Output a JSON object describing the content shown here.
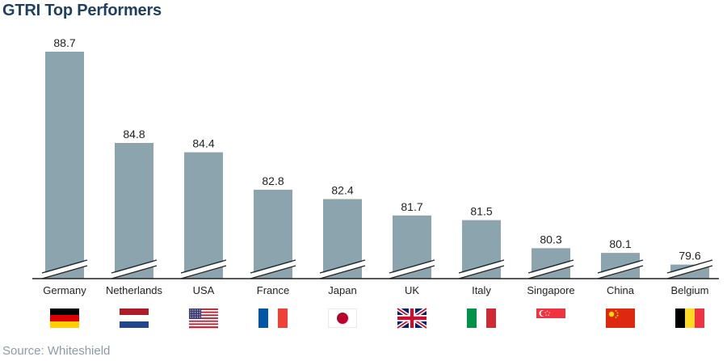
{
  "title": "GTRI Top Performers",
  "source": "Source: Whiteshield",
  "colors": {
    "bar": "#8ba4ae",
    "title": "#1f3f5f",
    "axis": "#222222",
    "source": "#8f9aa3"
  },
  "chart_data": {
    "type": "bar",
    "title": "GTRI Top Performers",
    "xlabel": "",
    "ylabel": "",
    "ylim": [
      79.0,
      88.7
    ],
    "axis_break": true,
    "grid": false,
    "categories": [
      "Germany",
      "Netherlands",
      "USA",
      "France",
      "Japan",
      "UK",
      "Italy",
      "Singapore",
      "China",
      "Belgium"
    ],
    "values": [
      88.7,
      84.8,
      84.4,
      82.8,
      82.4,
      81.7,
      81.5,
      80.3,
      80.1,
      79.6
    ],
    "value_labels": [
      "88.7",
      "84.8",
      "84.4",
      "82.8",
      "82.4",
      "81.7",
      "81.5",
      "80.3",
      "80.1",
      "79.6"
    ],
    "flags": [
      "germany-flag-icon",
      "netherlands-flag-icon",
      "usa-flag-icon",
      "france-flag-icon",
      "japan-flag-icon",
      "uk-flag-icon",
      "italy-flag-icon",
      "singapore-flag-icon",
      "china-flag-icon",
      "belgium-flag-icon"
    ]
  }
}
